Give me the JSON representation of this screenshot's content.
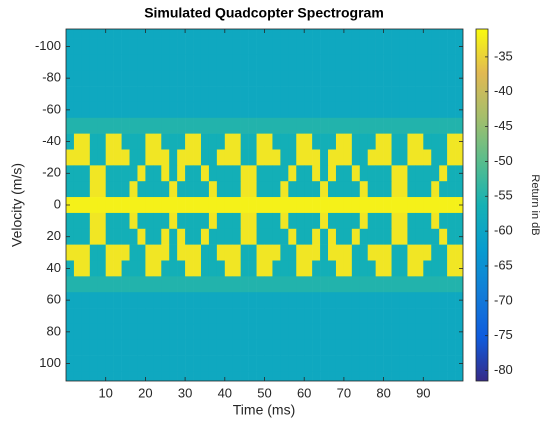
{
  "chart_data": {
    "type": "heatmap",
    "title": "Simulated Quadcopter Spectrogram",
    "x_label": "Time (ms)",
    "y_label": "Velocity (m/s)",
    "colorbar_label": "Return in dB",
    "colormap": "parula",
    "y_direction": "reverse",
    "xlim": [
      0,
      100
    ],
    "xticks": [
      10,
      20,
      30,
      40,
      50,
      60,
      70,
      80,
      90
    ],
    "ylim": [
      -111,
      111
    ],
    "yticks": [
      -100,
      -80,
      -60,
      -40,
      -20,
      0,
      20,
      40,
      60,
      80,
      100
    ],
    "clim": [
      -81.5,
      -31
    ],
    "cticks": [
      -35,
      -40,
      -45,
      -50,
      -55,
      -60,
      -65,
      -70,
      -75,
      -80
    ],
    "x": [
      1,
      3,
      5,
      7,
      9,
      11,
      13,
      15,
      17,
      19,
      21,
      23,
      25,
      27,
      29,
      31,
      33,
      35,
      37,
      39,
      41,
      43,
      45,
      47,
      49,
      51,
      53,
      55,
      57,
      59,
      61,
      63,
      65,
      67,
      69,
      71,
      73,
      75,
      77,
      79,
      81,
      83,
      85,
      87,
      89,
      91,
      93,
      95,
      97,
      99
    ],
    "y": [
      -110,
      -100,
      -90,
      -80,
      -70,
      -60,
      -50,
      -40,
      -30,
      -20,
      -10,
      0,
      10,
      20,
      30,
      40,
      50,
      60,
      70,
      80,
      90,
      100,
      110
    ],
    "z": [
      [
        -59,
        -59,
        -59,
        -59,
        -59,
        -59,
        -59,
        -59,
        -59,
        -59,
        -59,
        -59,
        -59,
        -59,
        -59,
        -59,
        -59,
        -59,
        -59,
        -59,
        -59,
        -59,
        -59,
        -59,
        -59,
        -59,
        -59,
        -59,
        -59,
        -59,
        -59,
        -59,
        -59,
        -59,
        -59,
        -59,
        -59,
        -59,
        -59,
        -59,
        -59,
        -59,
        -59,
        -59,
        -59,
        -59,
        -59,
        -59,
        -59,
        -59
      ],
      [
        -59,
        -59,
        -59,
        -59,
        -59,
        -59,
        -59,
        -59,
        -59,
        -59,
        -59,
        -59,
        -59,
        -59,
        -59,
        -59,
        -59,
        -59,
        -59,
        -59,
        -59,
        -59,
        -59,
        -59,
        -59,
        -59,
        -59,
        -59,
        -59,
        -59,
        -59,
        -59,
        -59,
        -59,
        -59,
        -59,
        -59,
        -59,
        -59,
        -59,
        -59,
        -59,
        -59,
        -59,
        -59,
        -59,
        -59,
        -59,
        -59,
        -59
      ],
      [
        -59,
        -59,
        -59,
        -59,
        -59,
        -59,
        -59,
        -59,
        -59,
        -59,
        -59,
        -59,
        -59,
        -59,
        -59,
        -59,
        -59,
        -59,
        -59,
        -59,
        -59,
        -59,
        -59,
        -59,
        -59,
        -59,
        -59,
        -59,
        -59,
        -59,
        -59,
        -59,
        -59,
        -59,
        -59,
        -59,
        -59,
        -59,
        -59,
        -59,
        -59,
        -59,
        -59,
        -59,
        -59,
        -59,
        -59,
        -59,
        -59,
        -59
      ],
      [
        -59,
        -59,
        -59,
        -59,
        -59,
        -59,
        -59,
        -59,
        -59,
        -59,
        -59,
        -59,
        -59,
        -59,
        -59,
        -59,
        -59,
        -59,
        -59,
        -59,
        -59,
        -59,
        -59,
        -59,
        -59,
        -59,
        -59,
        -59,
        -59,
        -59,
        -59,
        -59,
        -59,
        -59,
        -59,
        -59,
        -59,
        -59,
        -59,
        -59,
        -59,
        -59,
        -59,
        -59,
        -59,
        -59,
        -59,
        -59,
        -59,
        -59
      ],
      [
        -59,
        -59,
        -59,
        -59,
        -59,
        -59,
        -59,
        -59,
        -59,
        -59,
        -59,
        -59,
        -59,
        -59,
        -59,
        -59,
        -59,
        -59,
        -59,
        -59,
        -59,
        -59,
        -59,
        -59,
        -59,
        -59,
        -59,
        -59,
        -59,
        -59,
        -59,
        -59,
        -59,
        -59,
        -59,
        -59,
        -59,
        -59,
        -59,
        -59,
        -59,
        -59,
        -59,
        -59,
        -59,
        -59,
        -59,
        -59,
        -59,
        -59
      ],
      [
        -59,
        -59,
        -59,
        -59,
        -59,
        -59,
        -59,
        -59,
        -59,
        -59,
        -59,
        -59,
        -59,
        -59,
        -59,
        -59,
        -59,
        -59,
        -59,
        -59,
        -59,
        -59,
        -59,
        -59,
        -59,
        -59,
        -59,
        -59,
        -59,
        -59,
        -59,
        -59,
        -59,
        -59,
        -59,
        -59,
        -59,
        -59,
        -59,
        -59,
        -59,
        -59,
        -59,
        -59,
        -59,
        -59,
        -59,
        -59,
        -59,
        -59
      ],
      [
        -55,
        -55,
        -55,
        -55,
        -55,
        -55,
        -55,
        -55,
        -55,
        -55,
        -55,
        -55,
        -55,
        -55,
        -55,
        -55,
        -55,
        -55,
        -55,
        -55,
        -55,
        -55,
        -55,
        -55,
        -55,
        -55,
        -55,
        -55,
        -55,
        -55,
        -55,
        -55,
        -55,
        -55,
        -55,
        -55,
        -55,
        -55,
        -55,
        -55,
        -55,
        -55,
        -55,
        -55,
        -55,
        -55,
        -55,
        -55,
        -55,
        -55
      ],
      [
        -57,
        -33,
        -33,
        -57,
        -57,
        -33,
        -33,
        -57,
        -57,
        -57,
        -33,
        -33,
        -57,
        -57,
        -57,
        -33,
        -33,
        -57,
        -57,
        -57,
        -33,
        -33,
        -57,
        -57,
        -33,
        -33,
        -57,
        -57,
        -57,
        -33,
        -33,
        -57,
        -57,
        -57,
        -33,
        -33,
        -57,
        -57,
        -57,
        -33,
        -33,
        -57,
        -57,
        -33,
        -33,
        -57,
        -57,
        -57,
        -33,
        -33
      ],
      [
        -33,
        -33,
        -33,
        -57,
        -57,
        -33,
        -33,
        -33,
        -57,
        -57,
        -33,
        -33,
        -33,
        -57,
        -33,
        -33,
        -33,
        -57,
        -57,
        -33,
        -33,
        -33,
        -57,
        -57,
        -33,
        -33,
        -33,
        -57,
        -57,
        -33,
        -33,
        -33,
        -57,
        -33,
        -33,
        -33,
        -57,
        -57,
        -33,
        -33,
        -33,
        -57,
        -57,
        -33,
        -33,
        -33,
        -57,
        -57,
        -33,
        -33
      ],
      [
        -57,
        -57,
        -57,
        -33,
        -33,
        -57,
        -57,
        -57,
        -57,
        -33,
        -57,
        -57,
        -33,
        -57,
        -33,
        -57,
        -57,
        -33,
        -57,
        -57,
        -57,
        -57,
        -33,
        -33,
        -57,
        -57,
        -57,
        -57,
        -33,
        -57,
        -57,
        -33,
        -57,
        -33,
        -57,
        -57,
        -33,
        -57,
        -57,
        -57,
        -57,
        -33,
        -33,
        -57,
        -57,
        -57,
        -57,
        -33,
        -57,
        -57
      ],
      [
        -57,
        -57,
        -57,
        -33,
        -33,
        -57,
        -57,
        -57,
        -33,
        -57,
        -57,
        -57,
        -57,
        -33,
        -57,
        -57,
        -57,
        -57,
        -33,
        -57,
        -57,
        -57,
        -33,
        -33,
        -57,
        -57,
        -57,
        -33,
        -57,
        -57,
        -57,
        -57,
        -33,
        -57,
        -57,
        -57,
        -57,
        -33,
        -57,
        -57,
        -57,
        -33,
        -33,
        -57,
        -57,
        -57,
        -33,
        -57,
        -57,
        -57
      ],
      [
        -32,
        -32,
        -32,
        -32,
        -32,
        -32,
        -32,
        -32,
        -32,
        -32,
        -32,
        -32,
        -32,
        -32,
        -32,
        -32,
        -32,
        -32,
        -32,
        -32,
        -32,
        -32,
        -32,
        -32,
        -32,
        -32,
        -32,
        -32,
        -32,
        -32,
        -32,
        -32,
        -32,
        -32,
        -32,
        -32,
        -32,
        -32,
        -32,
        -32,
        -32,
        -32,
        -32,
        -32,
        -32,
        -32,
        -32,
        -32,
        -32,
        -32
      ],
      [
        -57,
        -57,
        -57,
        -33,
        -33,
        -57,
        -57,
        -57,
        -33,
        -57,
        -57,
        -57,
        -57,
        -33,
        -57,
        -57,
        -57,
        -57,
        -33,
        -57,
        -57,
        -57,
        -33,
        -33,
        -57,
        -57,
        -57,
        -33,
        -57,
        -57,
        -57,
        -57,
        -33,
        -57,
        -57,
        -57,
        -57,
        -33,
        -57,
        -57,
        -57,
        -33,
        -33,
        -57,
        -57,
        -57,
        -33,
        -57,
        -57,
        -57
      ],
      [
        -57,
        -57,
        -57,
        -33,
        -33,
        -57,
        -57,
        -57,
        -57,
        -33,
        -57,
        -57,
        -33,
        -57,
        -33,
        -57,
        -57,
        -33,
        -57,
        -57,
        -57,
        -57,
        -33,
        -33,
        -57,
        -57,
        -57,
        -57,
        -33,
        -57,
        -57,
        -33,
        -57,
        -33,
        -57,
        -57,
        -33,
        -57,
        -57,
        -57,
        -57,
        -33,
        -33,
        -57,
        -57,
        -57,
        -57,
        -33,
        -57,
        -57
      ],
      [
        -33,
        -33,
        -33,
        -57,
        -57,
        -33,
        -33,
        -33,
        -57,
        -57,
        -33,
        -33,
        -33,
        -57,
        -33,
        -33,
        -33,
        -57,
        -57,
        -33,
        -33,
        -33,
        -57,
        -57,
        -33,
        -33,
        -33,
        -57,
        -57,
        -33,
        -33,
        -33,
        -57,
        -33,
        -33,
        -33,
        -57,
        -57,
        -33,
        -33,
        -33,
        -57,
        -57,
        -33,
        -33,
        -33,
        -57,
        -57,
        -33,
        -33
      ],
      [
        -57,
        -33,
        -33,
        -57,
        -57,
        -33,
        -33,
        -57,
        -57,
        -57,
        -33,
        -33,
        -57,
        -57,
        -57,
        -33,
        -33,
        -57,
        -57,
        -57,
        -33,
        -33,
        -57,
        -57,
        -33,
        -33,
        -57,
        -57,
        -57,
        -33,
        -33,
        -57,
        -57,
        -57,
        -33,
        -33,
        -57,
        -57,
        -57,
        -33,
        -33,
        -57,
        -57,
        -33,
        -33,
        -57,
        -57,
        -57,
        -33,
        -33
      ],
      [
        -55,
        -55,
        -55,
        -55,
        -55,
        -55,
        -55,
        -55,
        -55,
        -55,
        -55,
        -55,
        -55,
        -55,
        -55,
        -55,
        -55,
        -55,
        -55,
        -55,
        -55,
        -55,
        -55,
        -55,
        -55,
        -55,
        -55,
        -55,
        -55,
        -55,
        -55,
        -55,
        -55,
        -55,
        -55,
        -55,
        -55,
        -55,
        -55,
        -55,
        -55,
        -55,
        -55,
        -55,
        -55,
        -55,
        -55,
        -55,
        -55,
        -55
      ],
      [
        -59,
        -59,
        -59,
        -59,
        -59,
        -59,
        -59,
        -59,
        -59,
        -59,
        -59,
        -59,
        -59,
        -59,
        -59,
        -59,
        -59,
        -59,
        -59,
        -59,
        -59,
        -59,
        -59,
        -59,
        -59,
        -59,
        -59,
        -59,
        -59,
        -59,
        -59,
        -59,
        -59,
        -59,
        -59,
        -59,
        -59,
        -59,
        -59,
        -59,
        -59,
        -59,
        -59,
        -59,
        -59,
        -59,
        -59,
        -59,
        -59,
        -59
      ],
      [
        -59,
        -59,
        -59,
        -59,
        -59,
        -59,
        -59,
        -59,
        -59,
        -59,
        -59,
        -59,
        -59,
        -59,
        -59,
        -59,
        -59,
        -59,
        -59,
        -59,
        -59,
        -59,
        -59,
        -59,
        -59,
        -59,
        -59,
        -59,
        -59,
        -59,
        -59,
        -59,
        -59,
        -59,
        -59,
        -59,
        -59,
        -59,
        -59,
        -59,
        -59,
        -59,
        -59,
        -59,
        -59,
        -59,
        -59,
        -59,
        -59,
        -59
      ],
      [
        -59,
        -59,
        -59,
        -59,
        -59,
        -59,
        -59,
        -59,
        -59,
        -59,
        -59,
        -59,
        -59,
        -59,
        -59,
        -59,
        -59,
        -59,
        -59,
        -59,
        -59,
        -59,
        -59,
        -59,
        -59,
        -59,
        -59,
        -59,
        -59,
        -59,
        -59,
        -59,
        -59,
        -59,
        -59,
        -59,
        -59,
        -59,
        -59,
        -59,
        -59,
        -59,
        -59,
        -59,
        -59,
        -59,
        -59,
        -59,
        -59,
        -59
      ],
      [
        -59,
        -59,
        -59,
        -59,
        -59,
        -59,
        -59,
        -59,
        -59,
        -59,
        -59,
        -59,
        -59,
        -59,
        -59,
        -59,
        -59,
        -59,
        -59,
        -59,
        -59,
        -59,
        -59,
        -59,
        -59,
        -59,
        -59,
        -59,
        -59,
        -59,
        -59,
        -59,
        -59,
        -59,
        -59,
        -59,
        -59,
        -59,
        -59,
        -59,
        -59,
        -59,
        -59,
        -59,
        -59,
        -59,
        -59,
        -59,
        -59,
        -59
      ],
      [
        -59,
        -59,
        -59,
        -59,
        -59,
        -59,
        -59,
        -59,
        -59,
        -59,
        -59,
        -59,
        -59,
        -59,
        -59,
        -59,
        -59,
        -59,
        -59,
        -59,
        -59,
        -59,
        -59,
        -59,
        -59,
        -59,
        -59,
        -59,
        -59,
        -59,
        -59,
        -59,
        -59,
        -59,
        -59,
        -59,
        -59,
        -59,
        -59,
        -59,
        -59,
        -59,
        -59,
        -59,
        -59,
        -59,
        -59,
        -59,
        -59,
        -59
      ],
      [
        -59,
        -59,
        -59,
        -59,
        -59,
        -59,
        -59,
        -59,
        -59,
        -59,
        -59,
        -59,
        -59,
        -59,
        -59,
        -59,
        -59,
        -59,
        -59,
        -59,
        -59,
        -59,
        -59,
        -59,
        -59,
        -59,
        -59,
        -59,
        -59,
        -59,
        -59,
        -59,
        -59,
        -59,
        -59,
        -59,
        -59,
        -59,
        -59,
        -59,
        -59,
        -59,
        -59,
        -59,
        -59,
        -59,
        -59,
        -59,
        -59,
        -59
      ]
    ]
  }
}
